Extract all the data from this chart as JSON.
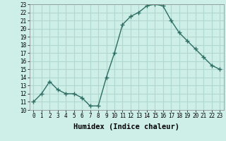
{
  "x": [
    0,
    1,
    2,
    3,
    4,
    5,
    6,
    7,
    8,
    9,
    10,
    11,
    12,
    13,
    14,
    15,
    16,
    17,
    18,
    19,
    20,
    21,
    22,
    23
  ],
  "y": [
    11.0,
    12.0,
    13.5,
    12.5,
    12.0,
    12.0,
    11.5,
    10.5,
    10.5,
    14.0,
    17.0,
    20.5,
    21.5,
    22.0,
    22.8,
    23.0,
    22.8,
    21.0,
    19.5,
    18.5,
    17.5,
    16.5,
    15.5,
    15.0
  ],
  "line_color": "#2d6e63",
  "marker": "+",
  "marker_size": 4,
  "marker_linewidth": 1.0,
  "bg_color": "#ceeee8",
  "grid_color": "#b0d8d0",
  "xlabel": "Humidex (Indice chaleur)",
  "ylim": [
    10,
    23
  ],
  "xlim": [
    -0.5,
    23.5
  ],
  "yticks": [
    10,
    11,
    12,
    13,
    14,
    15,
    16,
    17,
    18,
    19,
    20,
    21,
    22,
    23
  ],
  "xticks": [
    0,
    1,
    2,
    3,
    4,
    5,
    6,
    7,
    8,
    9,
    10,
    11,
    12,
    13,
    14,
    15,
    16,
    17,
    18,
    19,
    20,
    21,
    22,
    23
  ],
  "tick_fontsize": 5.5,
  "xlabel_fontsize": 7.5,
  "linewidth": 1.0
}
